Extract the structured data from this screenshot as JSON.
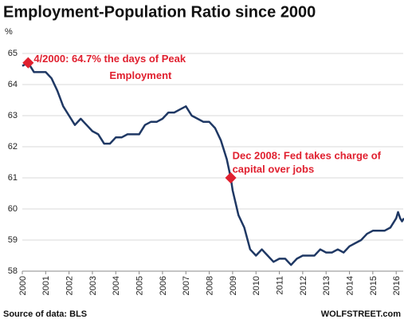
{
  "chart_data": {
    "type": "line",
    "title": "Employment-Population Ratio since 2000",
    "y_label": "%",
    "x": [
      2000.0,
      2000.25,
      2000.5,
      2000.75,
      2001.0,
      2001.25,
      2001.5,
      2001.75,
      2002.0,
      2002.25,
      2002.5,
      2002.75,
      2003.0,
      2003.25,
      2003.5,
      2003.75,
      2004.0,
      2004.25,
      2004.5,
      2004.75,
      2005.0,
      2005.25,
      2005.5,
      2005.75,
      2006.0,
      2006.25,
      2006.5,
      2006.75,
      2007.0,
      2007.25,
      2007.5,
      2007.75,
      2008.0,
      2008.25,
      2008.5,
      2008.75,
      2008.92,
      2009.0,
      2009.25,
      2009.5,
      2009.75,
      2010.0,
      2010.25,
      2010.5,
      2010.75,
      2011.0,
      2011.25,
      2011.5,
      2011.75,
      2012.0,
      2012.25,
      2012.5,
      2012.75,
      2013.0,
      2013.25,
      2013.5,
      2013.75,
      2014.0,
      2014.25,
      2014.5,
      2014.75,
      2015.0,
      2015.25,
      2015.5,
      2015.75,
      2016.0,
      2016.08,
      2016.17,
      2016.25,
      2016.33
    ],
    "series": [
      {
        "name": "Employment-population ratio",
        "color": "#1f3864",
        "values": [
          64.6,
          64.7,
          64.4,
          64.4,
          64.4,
          64.2,
          63.8,
          63.3,
          63.0,
          62.7,
          62.9,
          62.7,
          62.5,
          62.4,
          62.1,
          62.1,
          62.3,
          62.3,
          62.4,
          62.4,
          62.4,
          62.7,
          62.8,
          62.8,
          62.9,
          63.1,
          63.1,
          63.2,
          63.3,
          63.0,
          62.9,
          62.8,
          62.8,
          62.6,
          62.2,
          61.6,
          61.0,
          60.6,
          59.8,
          59.4,
          58.7,
          58.5,
          58.7,
          58.5,
          58.3,
          58.4,
          58.4,
          58.2,
          58.4,
          58.5,
          58.5,
          58.5,
          58.7,
          58.6,
          58.6,
          58.7,
          58.6,
          58.8,
          58.9,
          59.0,
          59.2,
          59.3,
          59.3,
          59.3,
          59.4,
          59.7,
          59.9,
          59.7,
          59.6,
          59.7
        ]
      }
    ],
    "xlim": [
      2000,
      2016.3
    ],
    "xticks": [
      2000,
      2001,
      2002,
      2003,
      2004,
      2005,
      2006,
      2007,
      2008,
      2009,
      2010,
      2011,
      2012,
      2013,
      2014,
      2015,
      2016
    ],
    "ylim": [
      58,
      65
    ],
    "yticks": [
      58,
      59,
      60,
      61,
      62,
      63,
      64,
      65
    ],
    "grid": true,
    "annotations": [
      {
        "lines": [
          "4/2000: 64.7% the days of Peak",
          "Employment"
        ],
        "x": 2000.25,
        "y": 64.7,
        "color": "#e0202f"
      },
      {
        "lines": [
          "Dec 2008: Fed takes charge of",
          "capital over jobs"
        ],
        "x": 2008.92,
        "y": 61.0,
        "color": "#e0202f"
      }
    ],
    "source": "Source of data: BLS",
    "credit": "WOLFSTREET.com"
  }
}
